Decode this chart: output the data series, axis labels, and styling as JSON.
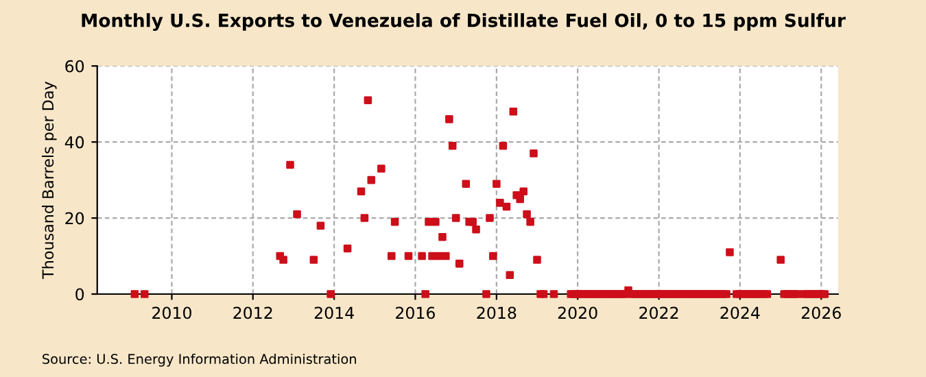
{
  "chart_data": {
    "type": "scatter",
    "title": "Monthly U.S. Exports to Venezuela of Distillate Fuel Oil, 0 to 15 ppm Sulfur",
    "ylabel": "Thousand Barrels per Day",
    "annotations": [
      "Source: U.S. Energy Information Administration"
    ],
    "marker": "square",
    "grid": true,
    "xlim": [
      "2008-03",
      "2026-06"
    ],
    "xticks": [
      "2010",
      "2012",
      "2014",
      "2016",
      "2018",
      "2020",
      "2022",
      "2024",
      "2026"
    ],
    "ylim": [
      0,
      60
    ],
    "yticks": [
      0,
      20,
      40,
      60
    ],
    "series": [
      {
        "color": "#cc0f1a",
        "x": [
          "2009-02",
          "2009-05",
          "2012-09",
          "2012-10",
          "2012-12",
          "2013-02",
          "2013-07",
          "2013-09",
          "2013-12",
          "2014-05",
          "2014-09",
          "2014-10",
          "2014-11",
          "2014-12",
          "2015-03",
          "2015-06",
          "2015-07",
          "2015-11",
          "2016-03",
          "2016-04",
          "2016-05",
          "2016-06",
          "2016-07",
          "2016-08",
          "2016-09",
          "2016-10",
          "2016-11",
          "2016-12",
          "2017-01",
          "2017-02",
          "2017-04",
          "2017-05",
          "2017-06",
          "2017-07",
          "2017-10",
          "2017-11",
          "2017-12",
          "2018-01",
          "2018-02",
          "2018-03",
          "2018-04",
          "2018-05",
          "2018-06",
          "2018-07",
          "2018-08",
          "2018-09",
          "2018-10",
          "2018-11",
          "2018-12",
          "2019-01",
          "2019-02",
          "2019-03",
          "2019-06",
          "2019-11",
          "2019-12",
          "2020-01",
          "2020-02",
          "2020-03",
          "2020-04",
          "2020-05",
          "2020-06",
          "2020-07",
          "2020-08",
          "2020-09",
          "2020-10",
          "2020-11",
          "2020-12",
          "2021-01",
          "2021-02",
          "2021-03",
          "2021-04",
          "2021-05",
          "2021-06",
          "2021-07",
          "2021-08",
          "2021-09",
          "2021-10",
          "2021-11",
          "2021-12",
          "2022-01",
          "2022-02",
          "2022-03",
          "2022-04",
          "2022-05",
          "2022-06",
          "2022-07",
          "2022-08",
          "2022-09",
          "2022-10",
          "2022-11",
          "2022-12",
          "2023-01",
          "2023-02",
          "2023-03",
          "2023-04",
          "2023-05",
          "2023-06",
          "2023-07",
          "2023-08",
          "2023-09",
          "2023-10",
          "2023-12",
          "2024-01",
          "2024-02",
          "2024-03",
          "2024-04",
          "2024-05",
          "2024-06",
          "2024-07",
          "2024-08",
          "2024-09",
          "2025-01",
          "2025-02",
          "2025-03",
          "2025-04",
          "2025-05",
          "2025-06",
          "2025-08",
          "2025-09",
          "2025-10",
          "2025-11",
          "2025-12",
          "2026-01",
          "2026-02"
        ],
        "values": [
          0,
          0,
          10,
          9,
          34,
          21,
          9,
          18,
          0,
          12,
          27,
          20,
          51,
          30,
          33,
          10,
          19,
          10,
          10,
          0,
          19,
          10,
          19,
          10,
          15,
          10,
          46,
          39,
          20,
          8,
          29,
          19,
          19,
          17,
          0,
          20,
          10,
          29,
          24,
          39,
          23,
          5,
          48,
          26,
          25,
          27,
          21,
          19,
          37,
          9,
          0,
          0,
          0,
          0,
          0,
          0,
          0,
          0,
          0,
          0,
          0,
          0,
          0,
          0,
          0,
          0,
          0,
          0,
          0,
          0,
          1,
          0,
          0,
          0,
          0,
          0,
          0,
          0,
          0,
          0,
          0,
          0,
          0,
          0,
          0,
          0,
          0,
          0,
          0,
          0,
          0,
          0,
          0,
          0,
          0,
          0,
          0,
          0,
          0,
          0,
          11,
          0,
          0,
          0,
          0,
          0,
          0,
          0,
          0,
          0,
          0,
          9,
          0,
          0,
          0,
          0,
          0,
          0,
          0,
          0,
          0,
          0,
          0,
          0
        ]
      }
    ]
  }
}
